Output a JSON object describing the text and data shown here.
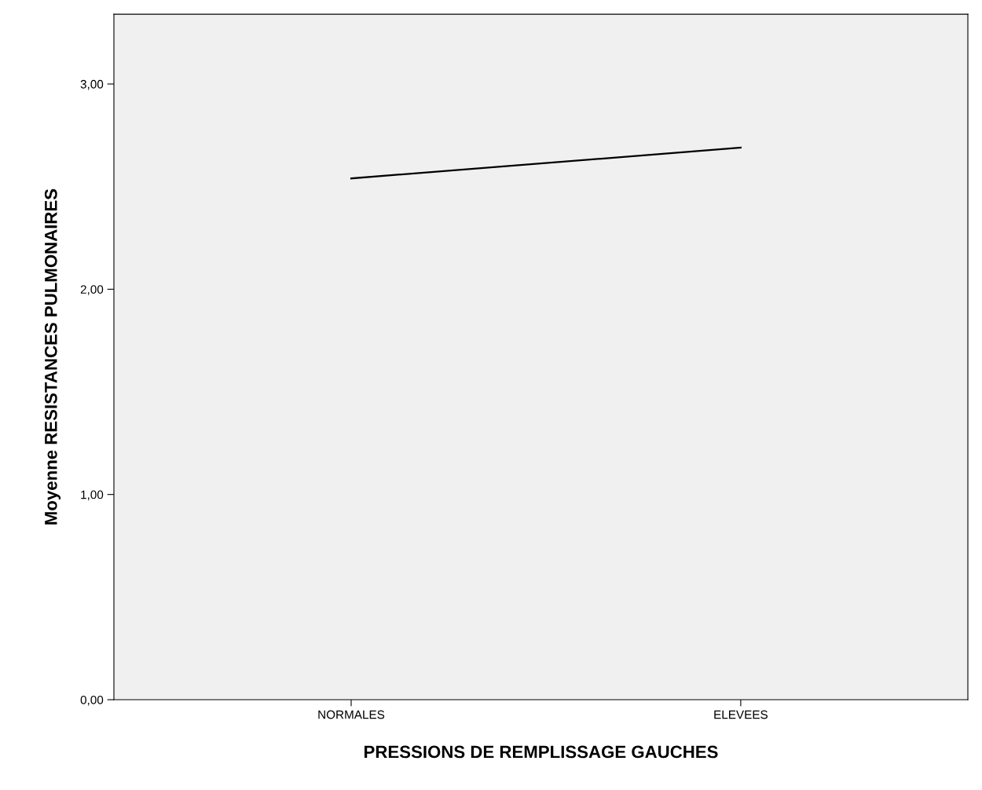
{
  "chart_data": {
    "type": "line",
    "xlabel": "PRESSIONS DE REMPLISSAGE GAUCHES",
    "ylabel": "Moyenne RESISTANCES PULMONAIRES",
    "categories": [
      "NORMALES",
      "ELEVEES"
    ],
    "series": [
      {
        "color": "#000000",
        "values": [
          2.54,
          2.69
        ]
      }
    ],
    "ylim": [
      0,
      3.34
    ],
    "yticks": [
      {
        "value": 0,
        "label": "0,00"
      },
      {
        "value": 1,
        "label": "1,00"
      },
      {
        "value": 2,
        "label": "2,00"
      },
      {
        "value": 3,
        "label": "3,00"
      }
    ],
    "grid": false,
    "legend": false,
    "marker": "none",
    "line_style": "solid"
  }
}
